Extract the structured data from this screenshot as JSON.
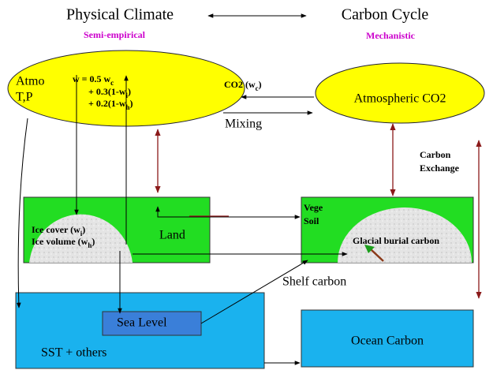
{
  "header": {
    "left_title": "Physical Climate",
    "left_subtitle": "Semi-empirical",
    "right_title": "Carbon Cycle",
    "right_subtitle": "Mechanistic"
  },
  "atmosphere": {
    "lines": [
      "Atmo",
      "T,P"
    ],
    "formula": [
      {
        "text": "w = 0.5 w",
        "sub": "c"
      },
      {
        "text": "+ 0.3(1-w",
        "sub": "i",
        "end": ")"
      },
      {
        "text": "+ 0.2(1-w",
        "sub": "h",
        "end": ")"
      }
    ]
  },
  "links": {
    "co2": {
      "text": "CO2 (w",
      "sub": "c",
      "end": ")"
    },
    "mixing": "Mixing",
    "exchange": [
      "Carbon",
      "Exchange"
    ],
    "shelf": "Shelf carbon"
  },
  "atmospheric_co2": "Atmospheric CO2",
  "land": {
    "ice_cover": {
      "text": "Ice cover (w",
      "sub": "i",
      "end": ")"
    },
    "ice_volume": {
      "text": "Ice volume (w",
      "sub": "h",
      "end": ")"
    },
    "label": "Land"
  },
  "vegetation": {
    "lines": [
      "Vege",
      "Soil"
    ],
    "glacial": "Glacial burial carbon"
  },
  "ocean": {
    "sea_level": "Sea Level",
    "sst": "SST + others",
    "carbon": "Ocean Carbon"
  }
}
